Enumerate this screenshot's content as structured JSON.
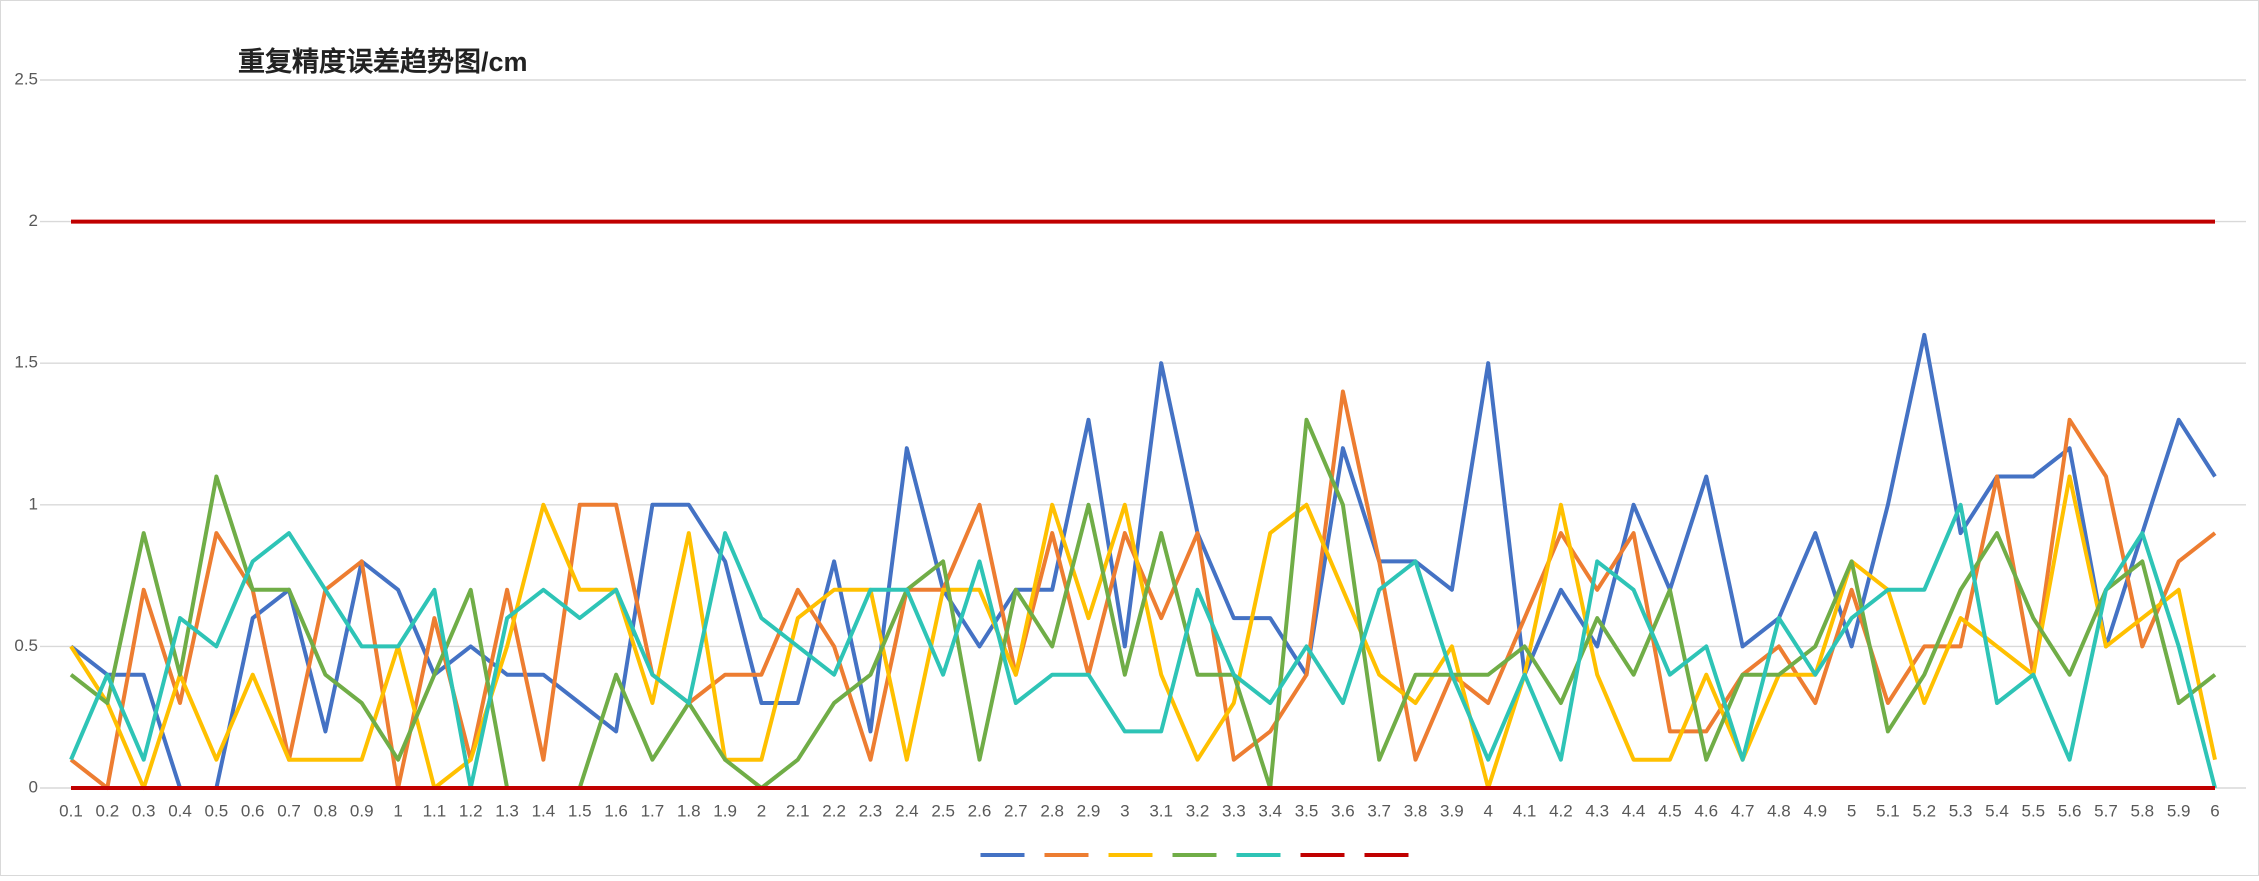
{
  "chart_data": {
    "type": "line",
    "title": "重复精度误差趋势图/cm",
    "categories": [
      "0.1",
      "0.2",
      "0.3",
      "0.4",
      "0.5",
      "0.6",
      "0.7",
      "0.8",
      "0.9",
      "1",
      "1.1",
      "1.2",
      "1.3",
      "1.4",
      "1.5",
      "1.6",
      "1.7",
      "1.8",
      "1.9",
      "2",
      "2.1",
      "2.2",
      "2.3",
      "2.4",
      "2.5",
      "2.6",
      "2.7",
      "2.8",
      "2.9",
      "3",
      "3.1",
      "3.2",
      "3.3",
      "3.4",
      "3.5",
      "3.6",
      "3.7",
      "3.8",
      "3.9",
      "4",
      "4.1",
      "4.2",
      "4.3",
      "4.4",
      "4.5",
      "4.6",
      "4.7",
      "4.8",
      "4.9",
      "5",
      "5.1",
      "5.2",
      "5.3",
      "5.4",
      "5.5",
      "5.6",
      "5.7",
      "5.8",
      "5.9",
      "6"
    ],
    "series": [
      {
        "color": "#4472c4",
        "values": [
          0.5,
          0.4,
          0.4,
          0,
          0,
          0.6,
          0.7,
          0.2,
          0.8,
          0.7,
          0.4,
          0.5,
          0.4,
          0.4,
          0.3,
          0.2,
          1.0,
          1.0,
          0.8,
          0.3,
          0.3,
          0.8,
          0.2,
          1.2,
          0.7,
          0.5,
          0.7,
          0.7,
          1.3,
          0.5,
          1.5,
          0.9,
          0.6,
          0.6,
          0.4,
          1.2,
          0.8,
          0.8,
          0.7,
          1.5,
          0.4,
          0.7,
          0.5,
          1.0,
          0.7,
          1.1,
          0.5,
          0.6,
          0.9,
          0.5,
          1.0,
          1.6,
          0.9,
          1.1,
          1.1,
          1.2,
          0.5,
          0.9,
          1.3,
          1.1
        ]
      },
      {
        "color": "#ed7d31",
        "values": [
          0.1,
          0,
          0.7,
          0.3,
          0.9,
          0.7,
          0.1,
          0.7,
          0.8,
          0,
          0.6,
          0.1,
          0.7,
          0.1,
          1.0,
          1.0,
          0.4,
          0.3,
          0.4,
          0.4,
          0.7,
          0.5,
          0.1,
          0.7,
          0.7,
          1.0,
          0.4,
          0.9,
          0.4,
          0.9,
          0.6,
          0.9,
          0.1,
          0.2,
          0.4,
          1.4,
          0.8,
          0.1,
          0.4,
          0.3,
          0.6,
          0.9,
          0.7,
          0.9,
          0.2,
          0.2,
          0.4,
          0.5,
          0.3,
          0.7,
          0.3,
          0.5,
          0.5,
          1.1,
          0.4,
          1.3,
          1.1,
          0.5,
          0.8,
          0.9
        ]
      },
      {
        "color": "#ffc000",
        "values": [
          0.5,
          0.3,
          0,
          0.4,
          0.1,
          0.4,
          0.1,
          0.1,
          0.1,
          0.5,
          0,
          0.1,
          0.5,
          1.0,
          0.7,
          0.7,
          0.3,
          0.9,
          0.1,
          0.1,
          0.6,
          0.7,
          0.7,
          0.1,
          0.7,
          0.7,
          0.4,
          1.0,
          0.6,
          1.0,
          0.4,
          0.1,
          0.3,
          0.9,
          1.0,
          0.7,
          0.4,
          0.3,
          0.5,
          0,
          0.4,
          1.0,
          0.4,
          0.1,
          0.1,
          0.4,
          0.1,
          0.4,
          0.4,
          0.8,
          0.7,
          0.3,
          0.6,
          0.5,
          0.4,
          1.1,
          0.5,
          0.6,
          0.7,
          0.1
        ]
      },
      {
        "color": "#70ad47",
        "values": [
          0.4,
          0.3,
          0.9,
          0.4,
          1.1,
          0.7,
          0.7,
          0.4,
          0.3,
          0.1,
          0.4,
          0.7,
          0,
          0,
          0,
          0.4,
          0.1,
          0.3,
          0.1,
          0,
          0.1,
          0.3,
          0.4,
          0.7,
          0.8,
          0.1,
          0.7,
          0.5,
          1.0,
          0.4,
          0.9,
          0.4,
          0.4,
          0,
          1.3,
          1.0,
          0.1,
          0.4,
          0.4,
          0.4,
          0.5,
          0.3,
          0.6,
          0.4,
          0.7,
          0.1,
          0.4,
          0.4,
          0.5,
          0.8,
          0.2,
          0.4,
          0.7,
          0.9,
          0.6,
          0.4,
          0.7,
          0.8,
          0.3,
          0.4
        ]
      },
      {
        "color": "#2ec4b6",
        "values": [
          0.1,
          0.4,
          0.1,
          0.6,
          0.5,
          0.8,
          0.9,
          0.7,
          0.5,
          0.5,
          0.7,
          0,
          0.6,
          0.7,
          0.6,
          0.7,
          0.4,
          0.3,
          0.9,
          0.6,
          0.5,
          0.4,
          0.7,
          0.7,
          0.4,
          0.8,
          0.3,
          0.4,
          0.4,
          0.2,
          0.2,
          0.7,
          0.4,
          0.3,
          0.5,
          0.3,
          0.7,
          0.8,
          0.4,
          0.1,
          0.4,
          0.1,
          0.8,
          0.7,
          0.4,
          0.5,
          0.1,
          0.6,
          0.4,
          0.6,
          0.7,
          0.7,
          1.0,
          0.3,
          0.4,
          0.1,
          0.7,
          0.9,
          0.5,
          0
        ]
      },
      {
        "color": "#c00000",
        "values": [
          2,
          2,
          2,
          2,
          2,
          2,
          2,
          2,
          2,
          2,
          2,
          2,
          2,
          2,
          2,
          2,
          2,
          2,
          2,
          2,
          2,
          2,
          2,
          2,
          2,
          2,
          2,
          2,
          2,
          2,
          2,
          2,
          2,
          2,
          2,
          2,
          2,
          2,
          2,
          2,
          2,
          2,
          2,
          2,
          2,
          2,
          2,
          2,
          2,
          2,
          2,
          2,
          2,
          2,
          2,
          2,
          2,
          2,
          2,
          2
        ]
      },
      {
        "color": "#c00000",
        "values": [
          0,
          0,
          0,
          0,
          0,
          0,
          0,
          0,
          0,
          0,
          0,
          0,
          0,
          0,
          0,
          0,
          0,
          0,
          0,
          0,
          0,
          0,
          0,
          0,
          0,
          0,
          0,
          0,
          0,
          0,
          0,
          0,
          0,
          0,
          0,
          0,
          0,
          0,
          0,
          0,
          0,
          0,
          0,
          0,
          0,
          0,
          0,
          0,
          0,
          0,
          0,
          0,
          0,
          0,
          0,
          0,
          0,
          0,
          0,
          0
        ]
      }
    ],
    "ylim": [
      0,
      2.5
    ],
    "yticks": [
      0,
      0.5,
      1,
      1.5,
      2,
      2.5
    ],
    "grid": true
  }
}
